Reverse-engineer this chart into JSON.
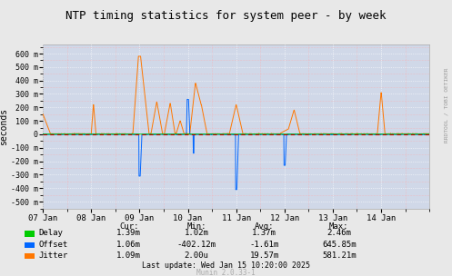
{
  "title": "NTP timing statistics for system peer - by week",
  "ylabel": "seconds",
  "right_label": "RRDTOOL / TOBI OETIKER",
  "bg_color": "#e8e8e8",
  "plot_bg_color": "#d0d8e8",
  "grid_color_major": "#ffffff",
  "grid_color_minor": "#ffaaaa",
  "xlim_start": 1736208000,
  "xlim_end": 1736899200,
  "ylim": [
    -0.55,
    0.67
  ],
  "yticks": [
    -0.5,
    -0.4,
    -0.3,
    -0.2,
    -0.1,
    0.0,
    0.1,
    0.2,
    0.3,
    0.4,
    0.5,
    0.6
  ],
  "ytick_labels": [
    "-500 m",
    "-400 m",
    "-300 m",
    "-200 m",
    "-100 m",
    "0",
    "100 m",
    "200 m",
    "300 m",
    "400 m",
    "500 m",
    "600 m"
  ],
  "xtick_positions": [
    1736208000,
    1736294400,
    1736380800,
    1736467200,
    1736553600,
    1736640000,
    1736726400,
    1736812800
  ],
  "xtick_labels": [
    "07 Jan",
    "08 Jan",
    "09 Jan",
    "10 Jan",
    "11 Jan",
    "12 Jan",
    "13 Jan",
    "14 Jan"
  ],
  "delay_color": "#00cc00",
  "offset_color": "#0066ff",
  "jitter_color": "#ff7700",
  "zero_line_color": "#cc0000",
  "stats": {
    "headers": [
      "Cur:",
      "Min:",
      "Avg:",
      "Max:"
    ],
    "Delay": [
      "1.39m",
      "1.02m",
      "1.37m",
      "2.46m"
    ],
    "Offset": [
      "1.06m",
      "-402.12m",
      "-1.61m",
      "645.85m"
    ],
    "Jitter": [
      "1.09m",
      "2.00u",
      "19.57m",
      "581.21m"
    ]
  },
  "last_update": "Last update: Wed Jan 15 10:20:00 2025",
  "munin_version": "Munin 2.0.33-1"
}
